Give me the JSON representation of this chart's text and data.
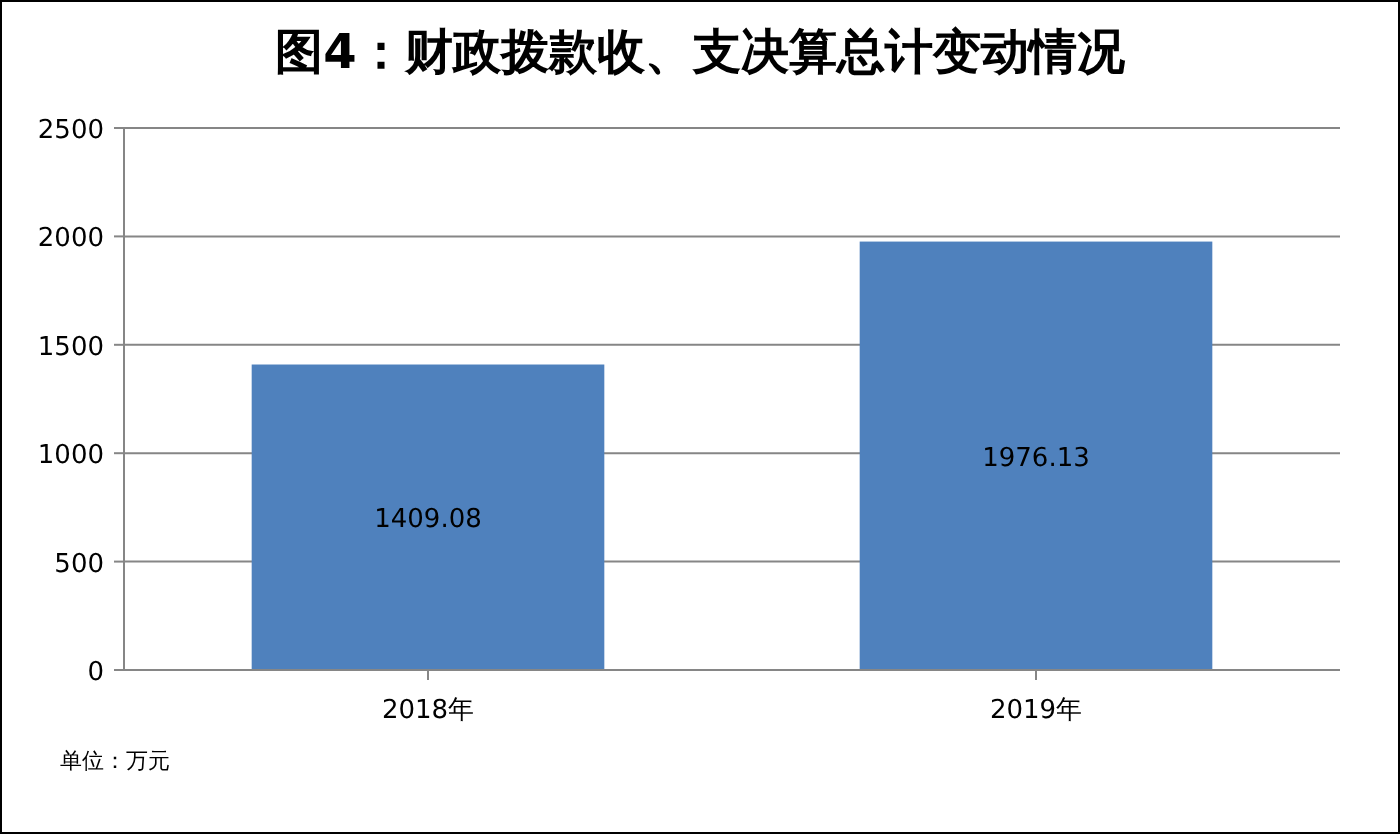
{
  "chart_data": {
    "type": "bar",
    "title": "图4：财政拨款收、支决算总计变动情况",
    "categories": [
      "2018年",
      "2019年"
    ],
    "values": [
      1409.08,
      1976.13
    ],
    "color": "#4f81bd",
    "ylim": [
      0,
      2500
    ],
    "yticks": [
      0,
      500,
      1000,
      1500,
      2000,
      2500
    ],
    "grid": "y",
    "data_labels": true,
    "annotations": [
      "单位：万元"
    ]
  }
}
